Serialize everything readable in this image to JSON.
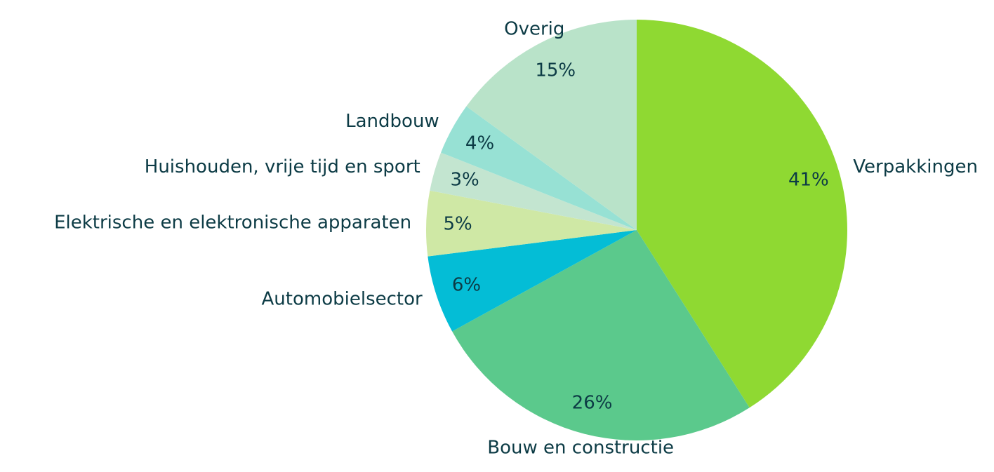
{
  "chart_data": {
    "type": "pie",
    "categories": [
      "Verpakkingen",
      "Bouw en constructie",
      "Automobielsector",
      "Elektrische en elektronische apparaten",
      "Huishouden, vrije tijd en sport",
      "Landbouw",
      "Overig"
    ],
    "values": [
      41,
      26,
      6,
      5,
      3,
      4,
      15
    ],
    "value_labels": [
      "41%",
      "26%",
      "6%",
      "5%",
      "3%",
      "4%",
      "15%"
    ],
    "colors": [
      "#8fd932",
      "#5bc98c",
      "#04bdd6",
      "#cfe8a5",
      "#c3e5d0",
      "#97e1d4",
      "#b9e3c9"
    ]
  }
}
